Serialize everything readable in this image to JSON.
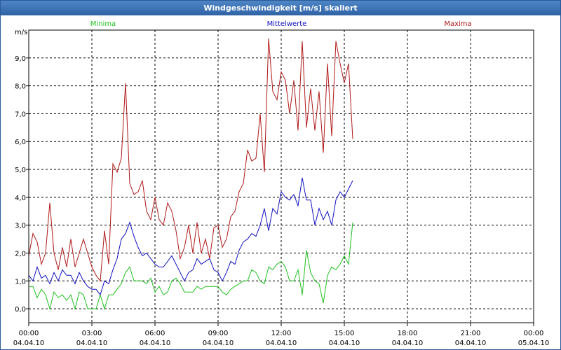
{
  "window": {
    "title": "Windgeschwindigkeit [m/s] skaliert"
  },
  "colors": {
    "minima": "#20c020",
    "mittelwerte": "#1010c0",
    "maxima": "#b01818",
    "grid": "#000000",
    "text": "#000000"
  },
  "chart_data": {
    "type": "line",
    "title": "Windgeschwindigkeit [m/s] skaliert",
    "ylabel": "m/s",
    "ylim": [
      -0.5,
      10.0
    ],
    "xlim": [
      0,
      24
    ],
    "grid": true,
    "legend_placement": "top",
    "yticks": [
      {
        "v": 0,
        "label": "0,0"
      },
      {
        "v": 1,
        "label": "1,0"
      },
      {
        "v": 2,
        "label": "2,0"
      },
      {
        "v": 3,
        "label": "3,0"
      },
      {
        "v": 4,
        "label": "4,0"
      },
      {
        "v": 5,
        "label": "5,0"
      },
      {
        "v": 6,
        "label": "6,0"
      },
      {
        "v": 7,
        "label": "7,0"
      },
      {
        "v": 8,
        "label": "8,0"
      },
      {
        "v": 9,
        "label": "9,0"
      }
    ],
    "xticks": [
      {
        "h": 0,
        "time": "00:00",
        "date": "04.04.10"
      },
      {
        "h": 3,
        "time": "03:00",
        "date": "04.04.10"
      },
      {
        "h": 6,
        "time": "06:00",
        "date": "04.04.10"
      },
      {
        "h": 9,
        "time": "09:00",
        "date": "04.04.10"
      },
      {
        "h": 12,
        "time": "12:00",
        "date": "04.04.10"
      },
      {
        "h": 15,
        "time": "15:00",
        "date": "04.04.10"
      },
      {
        "h": 18,
        "time": "18:00",
        "date": "04.04.10"
      },
      {
        "h": 21,
        "time": "21:00",
        "date": "04.04.10"
      },
      {
        "h": 24,
        "time": "00:00",
        "date": "05.04.10"
      }
    ],
    "series": [
      {
        "name": "Minima",
        "color": "#20c020",
        "x": [
          0.0,
          0.2,
          0.4,
          0.6,
          0.8,
          1.0,
          1.2,
          1.4,
          1.6,
          1.8,
          2.0,
          2.2,
          2.4,
          2.6,
          2.8,
          3.0,
          3.2,
          3.4,
          3.6,
          3.8,
          4.0,
          4.2,
          4.4,
          4.6,
          4.8,
          5.0,
          5.2,
          5.4,
          5.6,
          5.8,
          6.0,
          6.2,
          6.4,
          6.6,
          6.8,
          7.0,
          7.2,
          7.4,
          7.6,
          7.8,
          8.0,
          8.2,
          8.4,
          8.6,
          8.8,
          9.0,
          9.2,
          9.4,
          9.6,
          9.8,
          10.0,
          10.2,
          10.4,
          10.6,
          10.8,
          11.0,
          11.2,
          11.4,
          11.6,
          11.8,
          12.0,
          12.2,
          12.4,
          12.6,
          12.8,
          13.0,
          13.2,
          13.4,
          13.6,
          13.8,
          14.0,
          14.2,
          14.4,
          14.6,
          14.8,
          15.0,
          15.2,
          15.4
        ],
        "y": [
          0.8,
          0.8,
          0.4,
          0.7,
          0.5,
          0.0,
          0.6,
          0.4,
          0.5,
          0.3,
          0.5,
          0.0,
          0.6,
          0.5,
          0.0,
          0.0,
          0.0,
          0.5,
          0.0,
          0.5,
          0.5,
          0.7,
          0.9,
          1.3,
          1.5,
          1.0,
          1.0,
          1.0,
          0.9,
          1.1,
          0.6,
          0.8,
          0.5,
          0.6,
          1.0,
          1.1,
          0.9,
          0.6,
          0.6,
          0.6,
          0.8,
          0.7,
          0.8,
          0.8,
          0.8,
          0.8,
          0.6,
          0.5,
          0.7,
          0.8,
          0.9,
          1.0,
          1.0,
          1.4,
          1.3,
          1.0,
          0.9,
          1.5,
          1.4,
          1.6,
          1.7,
          1.5,
          1.0,
          1.0,
          1.4,
          0.5,
          2.1,
          1.3,
          1.0,
          0.9,
          0.2,
          1.2,
          1.5,
          1.4,
          1.6,
          1.9,
          1.6,
          3.1
        ]
      },
      {
        "name": "Mittelwerte",
        "color": "#1010c0",
        "x": [
          0.0,
          0.2,
          0.4,
          0.6,
          0.8,
          1.0,
          1.2,
          1.4,
          1.6,
          1.8,
          2.0,
          2.2,
          2.4,
          2.6,
          2.8,
          3.0,
          3.2,
          3.4,
          3.6,
          3.8,
          4.0,
          4.2,
          4.4,
          4.6,
          4.8,
          5.0,
          5.2,
          5.4,
          5.6,
          5.8,
          6.0,
          6.2,
          6.4,
          6.6,
          6.8,
          7.0,
          7.2,
          7.4,
          7.6,
          7.8,
          8.0,
          8.2,
          8.4,
          8.6,
          8.8,
          9.0,
          9.2,
          9.4,
          9.6,
          9.8,
          10.0,
          10.2,
          10.4,
          10.6,
          10.8,
          11.0,
          11.2,
          11.4,
          11.6,
          11.8,
          12.0,
          12.2,
          12.4,
          12.6,
          12.8,
          13.0,
          13.2,
          13.4,
          13.6,
          13.8,
          14.0,
          14.2,
          14.4,
          14.6,
          14.8,
          15.0,
          15.2,
          15.4
        ],
        "y": [
          1.2,
          1.0,
          1.5,
          1.1,
          1.2,
          0.9,
          1.3,
          1.0,
          1.4,
          1.2,
          1.2,
          0.9,
          1.3,
          1.0,
          0.8,
          0.7,
          0.7,
          0.5,
          1.0,
          0.9,
          1.4,
          1.8,
          2.5,
          2.7,
          3.1,
          2.6,
          2.2,
          1.9,
          2.0,
          1.8,
          1.6,
          1.5,
          1.5,
          1.7,
          1.9,
          1.6,
          1.3,
          1.0,
          1.3,
          1.4,
          1.8,
          1.6,
          1.7,
          1.8,
          1.4,
          1.3,
          1.0,
          1.3,
          1.7,
          1.6,
          2.1,
          2.4,
          2.5,
          2.7,
          2.6,
          3.0,
          3.6,
          2.8,
          3.6,
          3.4,
          4.2,
          4.0,
          3.9,
          4.1,
          3.7,
          4.7,
          3.9,
          3.9,
          3.0,
          3.6,
          3.2,
          3.5,
          3.0,
          3.9,
          4.2,
          4.0,
          4.3,
          4.6
        ]
      },
      {
        "name": "Maxima",
        "color": "#b01818",
        "x": [
          0.0,
          0.2,
          0.4,
          0.6,
          0.8,
          1.0,
          1.2,
          1.4,
          1.6,
          1.8,
          2.0,
          2.2,
          2.4,
          2.6,
          2.8,
          3.0,
          3.2,
          3.4,
          3.6,
          3.8,
          4.0,
          4.2,
          4.4,
          4.6,
          4.8,
          5.0,
          5.2,
          5.4,
          5.6,
          5.8,
          6.0,
          6.2,
          6.4,
          6.6,
          6.8,
          7.0,
          7.2,
          7.4,
          7.6,
          7.8,
          8.0,
          8.2,
          8.4,
          8.6,
          8.8,
          9.0,
          9.2,
          9.4,
          9.6,
          9.8,
          10.0,
          10.2,
          10.4,
          10.6,
          10.8,
          11.0,
          11.2,
          11.4,
          11.6,
          11.8,
          12.0,
          12.2,
          12.4,
          12.6,
          12.8,
          13.0,
          13.2,
          13.4,
          13.6,
          13.8,
          14.0,
          14.2,
          14.4,
          14.6,
          14.8,
          15.0,
          15.2,
          15.4
        ],
        "y": [
          1.9,
          2.7,
          2.4,
          1.6,
          2.0,
          3.8,
          2.0,
          1.4,
          2.2,
          1.5,
          2.5,
          1.5,
          2.0,
          2.5,
          2.0,
          1.5,
          1.2,
          1.0,
          2.8,
          1.6,
          5.2,
          4.9,
          5.4,
          8.1,
          4.5,
          4.1,
          4.2,
          4.6,
          3.5,
          3.2,
          4.0,
          3.2,
          3.0,
          3.8,
          3.5,
          2.8,
          1.8,
          2.2,
          3.0,
          2.0,
          3.1,
          2.0,
          2.5,
          1.8,
          2.9,
          3.0,
          2.2,
          2.5,
          3.3,
          3.5,
          4.2,
          4.5,
          5.7,
          5.3,
          5.4,
          7.0,
          4.9,
          9.7,
          7.8,
          7.5,
          8.5,
          8.2,
          7.0,
          8.2,
          6.4,
          9.6,
          6.5,
          7.9,
          6.4,
          7.8,
          5.6,
          8.8,
          6.2,
          9.6,
          8.8,
          8.1,
          8.8,
          6.1
        ]
      }
    ]
  }
}
